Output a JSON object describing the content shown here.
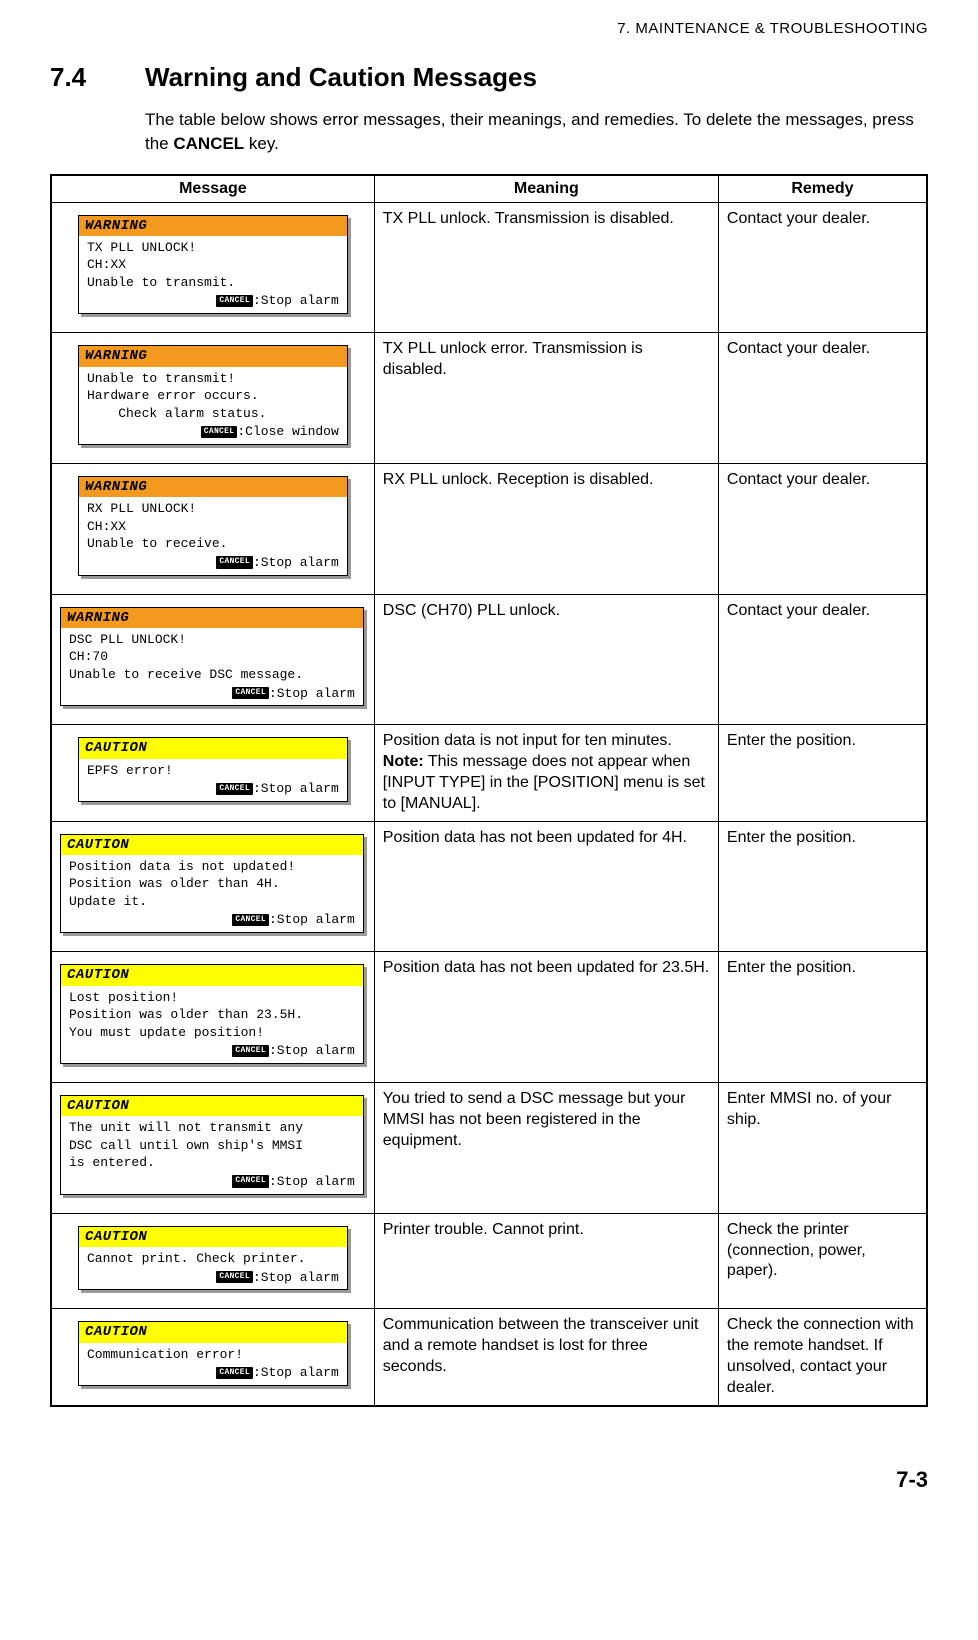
{
  "chapter_header": "7.  MAINTENANCE & TROUBLESHOOTING",
  "section_num": "7.4",
  "section_title": "Warning and Caution Messages",
  "intro_text_1": "The table below shows error messages, their meanings, and remedies. To delete the messages, press the ",
  "intro_bold": "CANCEL",
  "intro_text_2": " key.",
  "headers": {
    "message": "Message",
    "meaning": "Meaning",
    "remedy": "Remedy"
  },
  "cancel_badge": "CANCEL",
  "rows": [
    {
      "type": "warning",
      "size": "narrow",
      "title": "WARNING",
      "body": "TX PLL UNLOCK!\nCH:XX\nUnable to transmit.",
      "footer": ":Stop alarm",
      "meaning": "TX PLL unlock. Transmission is disabled.",
      "remedy": "Contact your dealer."
    },
    {
      "type": "warning",
      "size": "narrow",
      "title": "WARNING",
      "body": "Unable to transmit!\nHardware error occurs.\n    Check alarm status.",
      "footer": ":Close window",
      "meaning": "TX PLL unlock error. Transmission is disabled.",
      "remedy": "Contact your dealer."
    },
    {
      "type": "warning",
      "size": "narrow",
      "title": "WARNING",
      "body": "RX PLL UNLOCK!\nCH:XX\nUnable to receive.",
      "footer": ":Stop alarm",
      "meaning": "RX PLL unlock. Reception is disabled.",
      "remedy": "Contact your dealer."
    },
    {
      "type": "warning",
      "size": "wide",
      "title": "WARNING",
      "body": "DSC PLL UNLOCK!\nCH:70\nUnable to receive DSC message.",
      "footer": ":Stop alarm",
      "meaning": "DSC (CH70) PLL unlock.",
      "remedy": "Contact your dealer."
    },
    {
      "type": "caution",
      "size": "narrow",
      "title": "CAUTION",
      "body": "EPFS error!",
      "footer": ":Stop alarm",
      "meaning_html": "Position data is not input for ten minutes.\n<b>Note:</b> This message does not appear when [INPUT TYPE] in the [POSITION] menu is set to [MANUAL].",
      "remedy": "Enter the position."
    },
    {
      "type": "caution",
      "size": "wide",
      "title": "CAUTION",
      "body": "Position data is not updated!\nPosition was older than 4H.\nUpdate it.",
      "footer": ":Stop alarm",
      "meaning": "Position data has not been updated for 4H.",
      "remedy": "Enter the position."
    },
    {
      "type": "caution",
      "size": "wide",
      "title": "CAUTION",
      "body": "Lost position!\nPosition was older than 23.5H.\nYou must update position!",
      "footer": ":Stop alarm",
      "meaning": "Position data has not been updated for 23.5H.",
      "remedy": "Enter the position."
    },
    {
      "type": "caution",
      "size": "wide",
      "title": "CAUTION",
      "body": "The unit will not transmit any\nDSC call until own ship's MMSI\nis entered.",
      "footer": ":Stop alarm",
      "meaning": "You tried to send a DSC message but your MMSI has not been registered in the equipment.",
      "remedy": "Enter MMSI no. of your ship."
    },
    {
      "type": "caution",
      "size": "narrow",
      "title": "CAUTION",
      "body": "Cannot print. Check printer.",
      "footer": ":Stop alarm",
      "meaning": "Printer trouble. Cannot print.",
      "remedy": "Check the printer (connection, power, paper)."
    },
    {
      "type": "caution",
      "size": "narrow",
      "title": "CAUTION",
      "body": "Communication error!",
      "footer": ":Stop alarm",
      "meaning": "Communication between the transceiver unit and a remote handset is lost for three seconds.",
      "remedy": "Check the connection with the remote handset. If unsolved, contact your dealer."
    }
  ],
  "page_num": "7-3"
}
